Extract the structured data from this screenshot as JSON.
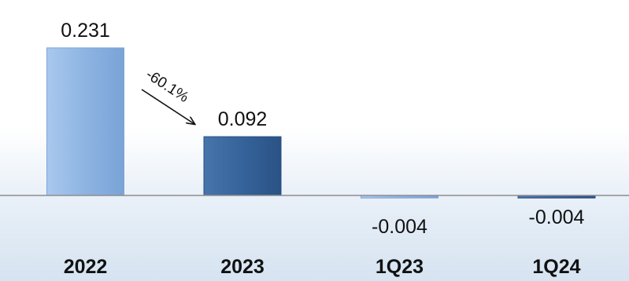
{
  "chart_data": {
    "type": "bar",
    "categories": [
      "2022",
      "2023",
      "1Q23",
      "1Q24"
    ],
    "values": [
      0.231,
      0.092,
      -0.004,
      -0.004
    ],
    "value_labels": [
      "0.231",
      "0.092",
      "-0.004",
      "-0.004"
    ],
    "colors": [
      "#8db4e2",
      "#35639a",
      "#8db4e2",
      "#35639a"
    ],
    "annotation": {
      "text": "-60.1%",
      "from": "2022",
      "to": "2023"
    },
    "title": "",
    "xlabel": "",
    "ylabel": "",
    "grid": false,
    "legend": "none"
  }
}
